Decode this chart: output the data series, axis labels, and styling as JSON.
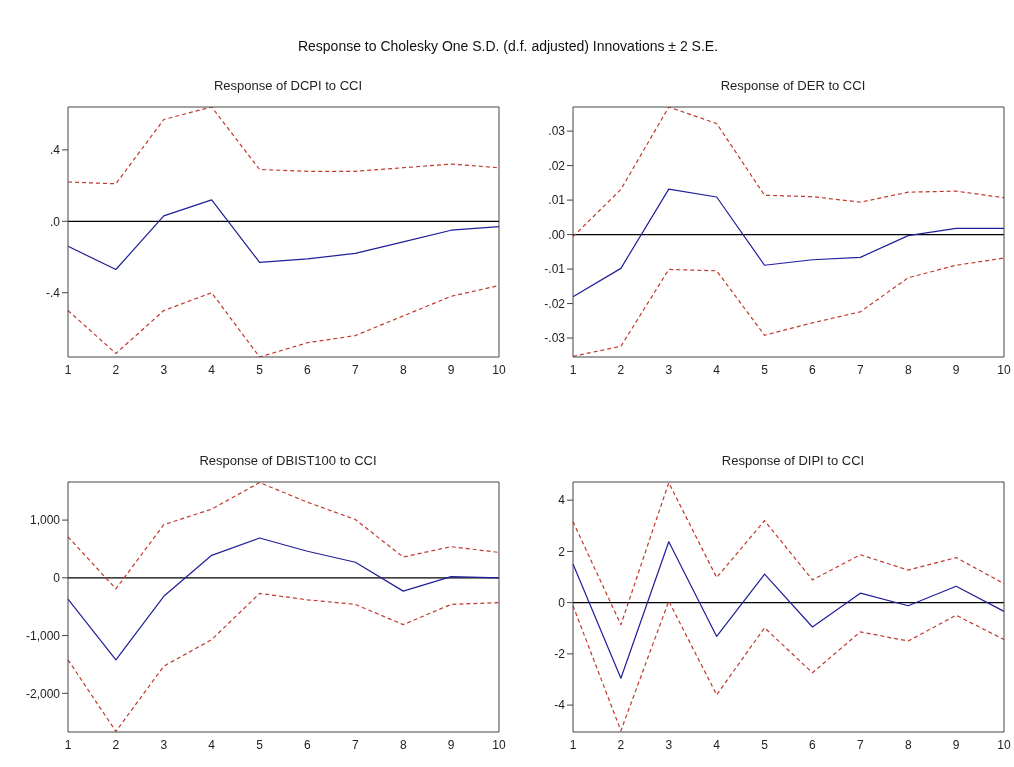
{
  "chart_data": [
    {
      "type": "line",
      "title": "Response of DCPI to CCI",
      "annotations": [
        "Response to Cholesky One S.D. (d.f. adjusted) Innovations ± 2 S.E."
      ],
      "categories": [
        "1",
        "2",
        "3",
        "4",
        "5",
        "6",
        "7",
        "8",
        "9",
        "10"
      ],
      "series": [
        {
          "color": "#1f1f99",
          "line_style": "solid",
          "values": [
            -0.14,
            -0.27,
            0.03,
            0.12,
            -0.23,
            -0.21,
            -0.18,
            -0.115,
            -0.05,
            -0.03
          ]
        },
        {
          "color": "#c0392b",
          "line_style": "dashed",
          "values": [
            0.22,
            0.21,
            0.57,
            0.64,
            0.29,
            0.28,
            0.28,
            0.3,
            0.32,
            0.3
          ]
        },
        {
          "color": "#c0392b",
          "line_style": "dashed",
          "values": [
            -0.5,
            -0.74,
            -0.5,
            -0.4,
            -0.76,
            -0.68,
            -0.64,
            -0.53,
            -0.42,
            -0.36
          ]
        }
      ],
      "ylim": [
        -0.76,
        0.64
      ],
      "yticks": [
        {
          "value": -0.4,
          "label": "-.4"
        },
        {
          "value": 0,
          "label": ".0"
        },
        {
          "value": 0.4,
          "label": ".4"
        }
      ],
      "ref_lines": [
        {
          "axis": "y",
          "value": 0,
          "color": "#000000"
        }
      ],
      "grid": false,
      "legend": false,
      "marker": "none"
    },
    {
      "type": "line",
      "title": "Response of DER to CCI",
      "categories": [
        "1",
        "2",
        "3",
        "4",
        "5",
        "6",
        "7",
        "8",
        "9",
        "10"
      ],
      "series": [
        {
          "color": "#1f1f99",
          "line_style": "solid",
          "values": [
            -0.018,
            -0.0098,
            0.0132,
            0.0109,
            -0.0089,
            -0.0073,
            -0.0066,
            -0.0003,
            0.0018,
            0.0018
          ]
        },
        {
          "color": "#c0392b",
          "line_style": "dashed",
          "values": [
            -0.0006,
            0.0131,
            0.037,
            0.0322,
            0.0114,
            0.011,
            0.0094,
            0.0123,
            0.0126,
            0.0107
          ]
        },
        {
          "color": "#c0392b",
          "line_style": "dashed",
          "values": [
            -0.0353,
            -0.0324,
            -0.0101,
            -0.0105,
            -0.0292,
            -0.0256,
            -0.0224,
            -0.0125,
            -0.0089,
            -0.0068
          ]
        }
      ],
      "ylim": [
        -0.0355,
        0.037
      ],
      "yticks": [
        {
          "value": -0.03,
          "label": "-.03"
        },
        {
          "value": -0.02,
          "label": "-.02"
        },
        {
          "value": -0.01,
          "label": "-.01"
        },
        {
          "value": 0,
          "label": ".00"
        },
        {
          "value": 0.01,
          "label": ".01"
        },
        {
          "value": 0.02,
          "label": ".02"
        },
        {
          "value": 0.03,
          "label": ".03"
        }
      ],
      "ref_lines": [
        {
          "axis": "y",
          "value": 0,
          "color": "#000000"
        }
      ],
      "grid": false,
      "legend": false,
      "marker": "none"
    },
    {
      "type": "line",
      "title": "Response of DBIST100 to CCI",
      "categories": [
        "1",
        "2",
        "3",
        "4",
        "5",
        "6",
        "7",
        "8",
        "9",
        "10"
      ],
      "series": [
        {
          "color": "#1f1f99",
          "line_style": "solid",
          "values": [
            -370,
            -1420,
            -320,
            390,
            690,
            460,
            270,
            -230,
            20,
            0
          ]
        },
        {
          "color": "#c0392b",
          "line_style": "dashed",
          "values": [
            710,
            -190,
            920,
            1190,
            1650,
            1310,
            1010,
            360,
            540,
            440
          ]
        },
        {
          "color": "#c0392b",
          "line_style": "dashed",
          "values": [
            -1420,
            -2660,
            -1530,
            -1070,
            -270,
            -380,
            -460,
            -810,
            -460,
            -430
          ]
        }
      ],
      "ylim": [
        -2670,
        1660
      ],
      "yticks": [
        {
          "value": -2000,
          "label": "-2,000"
        },
        {
          "value": -1000,
          "label": "-1,000"
        },
        0,
        {
          "value": 1000,
          "label": "1,000"
        }
      ],
      "ref_lines": [
        {
          "axis": "y",
          "value": 0,
          "color": "#000000"
        }
      ],
      "grid": false,
      "legend": false,
      "marker": "none"
    },
    {
      "type": "line",
      "title": "Response of DIPI to CCI",
      "categories": [
        "1",
        "2",
        "3",
        "4",
        "5",
        "6",
        "7",
        "8",
        "9",
        "10"
      ],
      "series": [
        {
          "color": "#1f1f99",
          "line_style": "solid",
          "values": [
            1.51,
            -2.95,
            2.38,
            -1.32,
            1.11,
            -0.95,
            0.37,
            -0.12,
            0.64,
            -0.34
          ]
        },
        {
          "color": "#c0392b",
          "line_style": "dashed",
          "values": [
            3.16,
            -0.86,
            4.68,
            0.98,
            3.2,
            0.89,
            1.87,
            1.27,
            1.76,
            0.74
          ]
        },
        {
          "color": "#c0392b",
          "line_style": "dashed",
          "values": [
            -0.12,
            -5.0,
            0.06,
            -3.6,
            -0.98,
            -2.74,
            -1.14,
            -1.5,
            -0.49,
            -1.44
          ]
        }
      ],
      "ylim": [
        -5.05,
        4.71
      ],
      "yticks": [
        -4,
        -2,
        0,
        2,
        4
      ],
      "ref_lines": [
        {
          "axis": "y",
          "value": 0,
          "color": "#000000"
        }
      ],
      "grid": false,
      "legend": false,
      "marker": "none"
    }
  ]
}
